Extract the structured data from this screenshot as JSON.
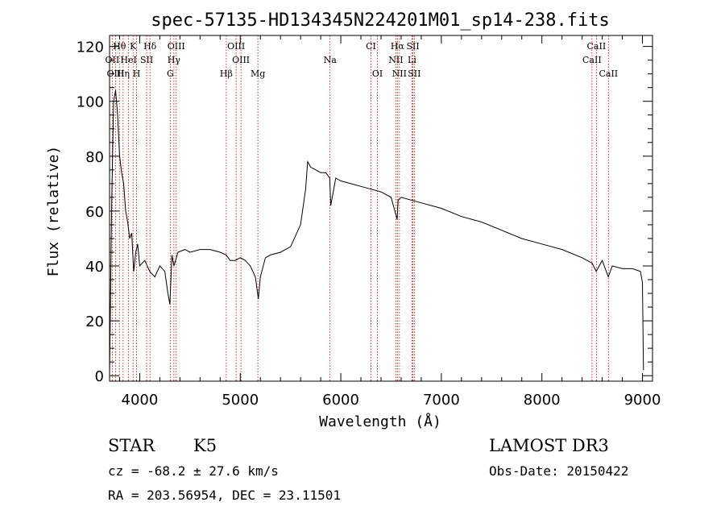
{
  "chart_data": {
    "type": "line",
    "title": "spec-57135-HD134345N224201M01_sp14-238.fits",
    "xlabel": "Wavelength (Å)",
    "ylabel": "Flux (relative)",
    "xlim": [
      3700,
      9100
    ],
    "ylim": [
      -2,
      124
    ],
    "x_ticks": [
      4000,
      5000,
      6000,
      7000,
      8000,
      9000
    ],
    "x_tick_labels": [
      "4000",
      "5000",
      "6000",
      "7000",
      "8000",
      "9000"
    ],
    "y_ticks": [
      0,
      20,
      40,
      60,
      80,
      100,
      120
    ],
    "y_tick_labels": [
      "0",
      "20",
      "40",
      "60",
      "80",
      "100",
      "120"
    ],
    "grid": false,
    "line_color": "#000000",
    "marker_color": "#cc0000",
    "series": [
      {
        "x": [
          3700,
          3720,
          3740,
          3760,
          3780,
          3800,
          3820,
          3840,
          3860,
          3880,
          3900,
          3920,
          3940,
          3960,
          3980,
          4000,
          4050,
          4100,
          4150,
          4200,
          4250,
          4280,
          4300,
          4320,
          4340,
          4380,
          4450,
          4500,
          4600,
          4700,
          4800,
          4860,
          4900,
          4950,
          5000,
          5050,
          5100,
          5150,
          5180,
          5200,
          5250,
          5300,
          5400,
          5500,
          5600,
          5650,
          5670,
          5700,
          5750,
          5800,
          5850,
          5890,
          5900,
          5950,
          6000,
          6100,
          6200,
          6300,
          6400,
          6500,
          6560,
          6570,
          6600,
          6700,
          6800,
          7000,
          7200,
          7400,
          7600,
          7800,
          8000,
          8200,
          8400,
          8500,
          8540,
          8600,
          8660,
          8700,
          8800,
          8900,
          8980,
          9000,
          9010
        ],
        "y": [
          0,
          60,
          100,
          104,
          95,
          80,
          74,
          70,
          60,
          56,
          50,
          52,
          38,
          45,
          48,
          40,
          42,
          38,
          36,
          40,
          38,
          30,
          26,
          44,
          40,
          45,
          46,
          45,
          46,
          46,
          45,
          44,
          42,
          42,
          43,
          42,
          40,
          36,
          28,
          36,
          43,
          44,
          45,
          47,
          55,
          68,
          78,
          76,
          75,
          74,
          74,
          72,
          62,
          72,
          71,
          70,
          69,
          68,
          67,
          65,
          57,
          64,
          65,
          64,
          63,
          61,
          58,
          56,
          53,
          50,
          48,
          46,
          43,
          41,
          38,
          42,
          36,
          40,
          39,
          39,
          38,
          34,
          2
        ]
      }
    ],
    "lines_top": [
      {
        "label": "Hθ",
        "x": 3798
      },
      {
        "label": "K",
        "x": 3934
      },
      {
        "label": "Hδ",
        "x": 4102
      },
      {
        "label": "OIII",
        "x": 4363
      },
      {
        "label": "OIII",
        "x": 4959
      },
      {
        "label": "CI",
        "x": 6300
      },
      {
        "label": "Hα",
        "x": 6563
      },
      {
        "label": "SII",
        "x": 6717
      },
      {
        "label": "CaII",
        "x": 8542
      }
    ],
    "lines_mid": [
      {
        "label": "OII",
        "x": 3727
      },
      {
        "label": "HeI",
        "x": 3889
      },
      {
        "label": "SII",
        "x": 4069
      },
      {
        "label": "Hγ",
        "x": 4340
      },
      {
        "label": "OIII",
        "x": 5007
      },
      {
        "label": "Na",
        "x": 5893
      },
      {
        "label": "NII",
        "x": 6548
      },
      {
        "label": "Li",
        "x": 6708
      },
      {
        "label": "CaII",
        "x": 8498
      }
    ],
    "lines_low": [
      {
        "label": "OIII",
        "x": 3760
      },
      {
        "label": "Hη",
        "x": 3835
      },
      {
        "label": "H",
        "x": 3969
      },
      {
        "label": "G",
        "x": 4304
      },
      {
        "label": "Hβ",
        "x": 4861
      },
      {
        "label": "Mg",
        "x": 5175
      },
      {
        "label": "OI",
        "x": 6364
      },
      {
        "label": "NII",
        "x": 6583
      },
      {
        "label": "SII",
        "x": 6731
      },
      {
        "label": "CaII",
        "x": 8662
      }
    ]
  },
  "info": {
    "class_label": "STAR",
    "subclass_label": "K5",
    "survey_label": "LAMOST DR3",
    "cz_label": "cz = -68.2 ± 27.6 km/s",
    "obs_date_label": "Obs-Date: 20150422",
    "coords_label": "RA = 203.56954, DEC =  23.11501"
  }
}
